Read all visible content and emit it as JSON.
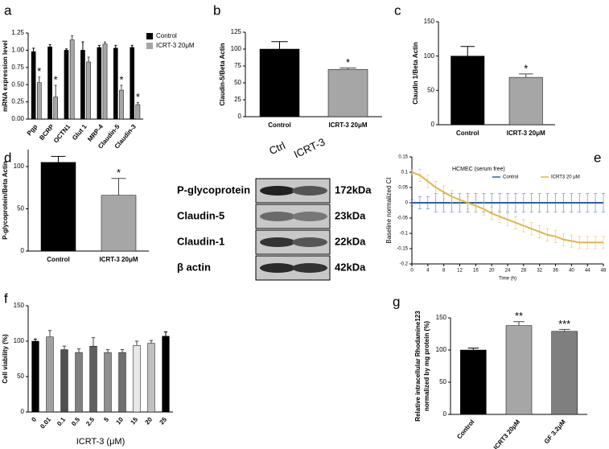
{
  "chart_data": [
    {
      "type": "bar",
      "panel": "a",
      "ylabel": "mRNA expression level",
      "categories": [
        "Pgp",
        "BCRP",
        "OCTN1",
        "Glut 1",
        "MRP-4",
        "Claudin-5",
        "Claudin-3"
      ],
      "series": [
        {
          "name": "Control",
          "color": "#000000",
          "values": [
            0.98,
            1.05,
            1.0,
            1.0,
            1.04,
            1.03,
            1.04
          ],
          "errors": [
            0.05,
            0.03,
            0.02,
            0.12,
            0.03,
            0.04,
            0.03
          ]
        },
        {
          "name": "ICRT-3 20μM",
          "color": "#a6a6a6",
          "values": [
            0.53,
            0.32,
            1.15,
            0.83,
            1.09,
            0.42,
            0.21
          ],
          "errors": [
            0.08,
            0.17,
            0.06,
            0.07,
            0.03,
            0.07,
            0.03
          ],
          "significance": [
            "*",
            "*",
            null,
            null,
            null,
            "*",
            "*"
          ]
        }
      ],
      "ylim": [
        0,
        1.25
      ],
      "yticks": [
        {
          "value": 0,
          "label": "0.00"
        },
        {
          "value": 0.25,
          "label": "0.25"
        },
        {
          "value": 0.5,
          "label": "0.50"
        },
        {
          "value": 0.75,
          "label": "0.75"
        },
        {
          "value": 1,
          "label": "1.00"
        },
        {
          "value": 1.25,
          "label": "1.25"
        }
      ],
      "legend": "right",
      "rotate_x": true
    },
    {
      "type": "bar",
      "panel": "b",
      "ylabel": "Claudin-5/Beta Actin",
      "categories": [
        "Control",
        "ICRT-3 20μM"
      ],
      "series": [
        {
          "colors": [
            "#000000",
            "#a6a6a6"
          ],
          "values": [
            100,
            70
          ],
          "errors": [
            11,
            2
          ],
          "significance": [
            null,
            "*"
          ]
        }
      ],
      "ylim": [
        0,
        125
      ],
      "yticks": [
        0,
        25,
        50,
        75,
        100,
        125
      ]
    },
    {
      "type": "bar",
      "panel": "c",
      "ylabel": "Claudin 1/Beta Actin",
      "categories": [
        "Control",
        "ICRT-3 20μM"
      ],
      "series": [
        {
          "colors": [
            "#000000",
            "#a6a6a6"
          ],
          "values": [
            100,
            69
          ],
          "errors": [
            14,
            5
          ],
          "significance": [
            null,
            "*"
          ]
        }
      ],
      "ylim": [
        0,
        150
      ],
      "yticks": [
        0,
        50,
        100,
        150
      ]
    },
    {
      "type": "bar",
      "panel": "d",
      "ylabel": "P-glycoprotein/Beta Actin",
      "categories": [
        "Control",
        "ICRT-3 20μM"
      ],
      "series": [
        {
          "colors": [
            "#000000",
            "#a6a6a6"
          ],
          "values": [
            105,
            66
          ],
          "errors": [
            7,
            20
          ],
          "significance": [
            null,
            "*"
          ]
        }
      ],
      "ylim": [
        0,
        120
      ],
      "yticks": [
        0,
        50,
        100
      ]
    },
    {
      "type": "line",
      "panel": "e",
      "title": "HCMEC (serum free)",
      "ylabel": "Baseline normalized CI",
      "xlabel": "Time (h)",
      "x": [
        0,
        2,
        4,
        6,
        8,
        10,
        12,
        14,
        16,
        18,
        20,
        22,
        24,
        26,
        28,
        30,
        32,
        34,
        36,
        38,
        40,
        42,
        44,
        46,
        48
      ],
      "series": [
        {
          "name": "Control",
          "color": "#2e5fa8",
          "values": [
            0,
            0,
            0,
            0,
            0,
            0,
            0,
            0,
            0,
            0,
            0,
            0,
            0,
            0,
            0,
            0,
            0,
            0,
            0,
            0,
            0,
            0,
            0,
            0,
            0
          ],
          "errors": [
            0.01,
            0.02,
            0.02,
            0.03,
            0.03,
            0.03,
            0.03,
            0.03,
            0.03,
            0.03,
            0.03,
            0.03,
            0.03,
            0.03,
            0.03,
            0.03,
            0.03,
            0.03,
            0.03,
            0.03,
            0.03,
            0.03,
            0.03,
            0.03,
            0.03
          ]
        },
        {
          "name": "ICRT3  20 μM",
          "color": "#e0b64c",
          "values": [
            0.1,
            0.09,
            0.07,
            0.05,
            0.035,
            0.02,
            0.01,
            0.0,
            -0.01,
            -0.02,
            -0.035,
            -0.045,
            -0.055,
            -0.065,
            -0.075,
            -0.085,
            -0.095,
            -0.105,
            -0.11,
            -0.12,
            -0.125,
            -0.13,
            -0.13,
            -0.13,
            -0.13
          ],
          "errors": [
            0.01,
            0.02,
            0.02,
            0.02,
            0.02,
            0.02,
            0.02,
            0.02,
            0.02,
            0.02,
            0.02,
            0.02,
            0.02,
            0.02,
            0.02,
            0.02,
            0.02,
            0.02,
            0.02,
            0.02,
            0.02,
            0.02,
            0.02,
            0.02,
            0.02
          ]
        }
      ],
      "xlim": [
        0,
        48
      ],
      "xticks": [
        0,
        4,
        8,
        12,
        16,
        20,
        24,
        28,
        32,
        36,
        40,
        44,
        48
      ],
      "ylim": [
        -0.2,
        0.15
      ],
      "yticks": [
        0.15,
        0.1,
        0.05,
        0,
        -0.05,
        -0.1,
        -0.15,
        -0.2
      ],
      "legend": "top-right"
    },
    {
      "type": "bar",
      "panel": "f",
      "ylabel": "Cell viability (%)",
      "xlabel": "ICRT-3 (μM)",
      "categories": [
        "0",
        "0.01",
        "0.1",
        "0.5",
        "2.5",
        "5",
        "10",
        "15",
        "20",
        "25"
      ],
      "series": [
        {
          "colors": [
            "#000000",
            "#a0a0a0",
            "#505050",
            "#808080",
            "#606060",
            "#909090",
            "#707070",
            "#e8e8e8",
            "#c0c0c0",
            "#000000"
          ],
          "values": [
            100,
            106,
            88,
            84,
            93,
            84,
            84,
            94,
            97,
            107
          ],
          "errors": [
            3,
            9,
            5,
            5,
            12,
            4,
            4,
            6,
            4,
            6
          ]
        }
      ],
      "ylim": [
        0,
        150
      ],
      "yticks": [
        0,
        50,
        100,
        150
      ],
      "rotate_x": true
    },
    {
      "type": "bar",
      "panel": "g",
      "ylabel": [
        "Relative intracellular Rhodamine123",
        "normalized by mg protein (%)"
      ],
      "categories": [
        "Control",
        "ICRT3 20μM",
        "GF 3.2μM"
      ],
      "series": [
        {
          "colors": [
            "#000000",
            "#a6a6a6",
            "#7f7f7f"
          ],
          "values": [
            100,
            138,
            129
          ],
          "errors": [
            3,
            6,
            3
          ],
          "significance": [
            null,
            "**",
            "***"
          ]
        }
      ],
      "ylim": [
        0,
        150
      ],
      "yticks": [
        0,
        50,
        100,
        150
      ],
      "rotate_x": true
    }
  ],
  "western_blot": {
    "lanes": [
      "Ctrl",
      "ICRT-3"
    ],
    "rows": [
      {
        "protein": "P-glycoprotein",
        "size": "172kDa"
      },
      {
        "protein": "Claudin-5",
        "size": "23kDa"
      },
      {
        "protein": "Claudin-1",
        "size": "22kDa"
      },
      {
        "protein": "β actin",
        "size": "42kDa"
      }
    ]
  }
}
